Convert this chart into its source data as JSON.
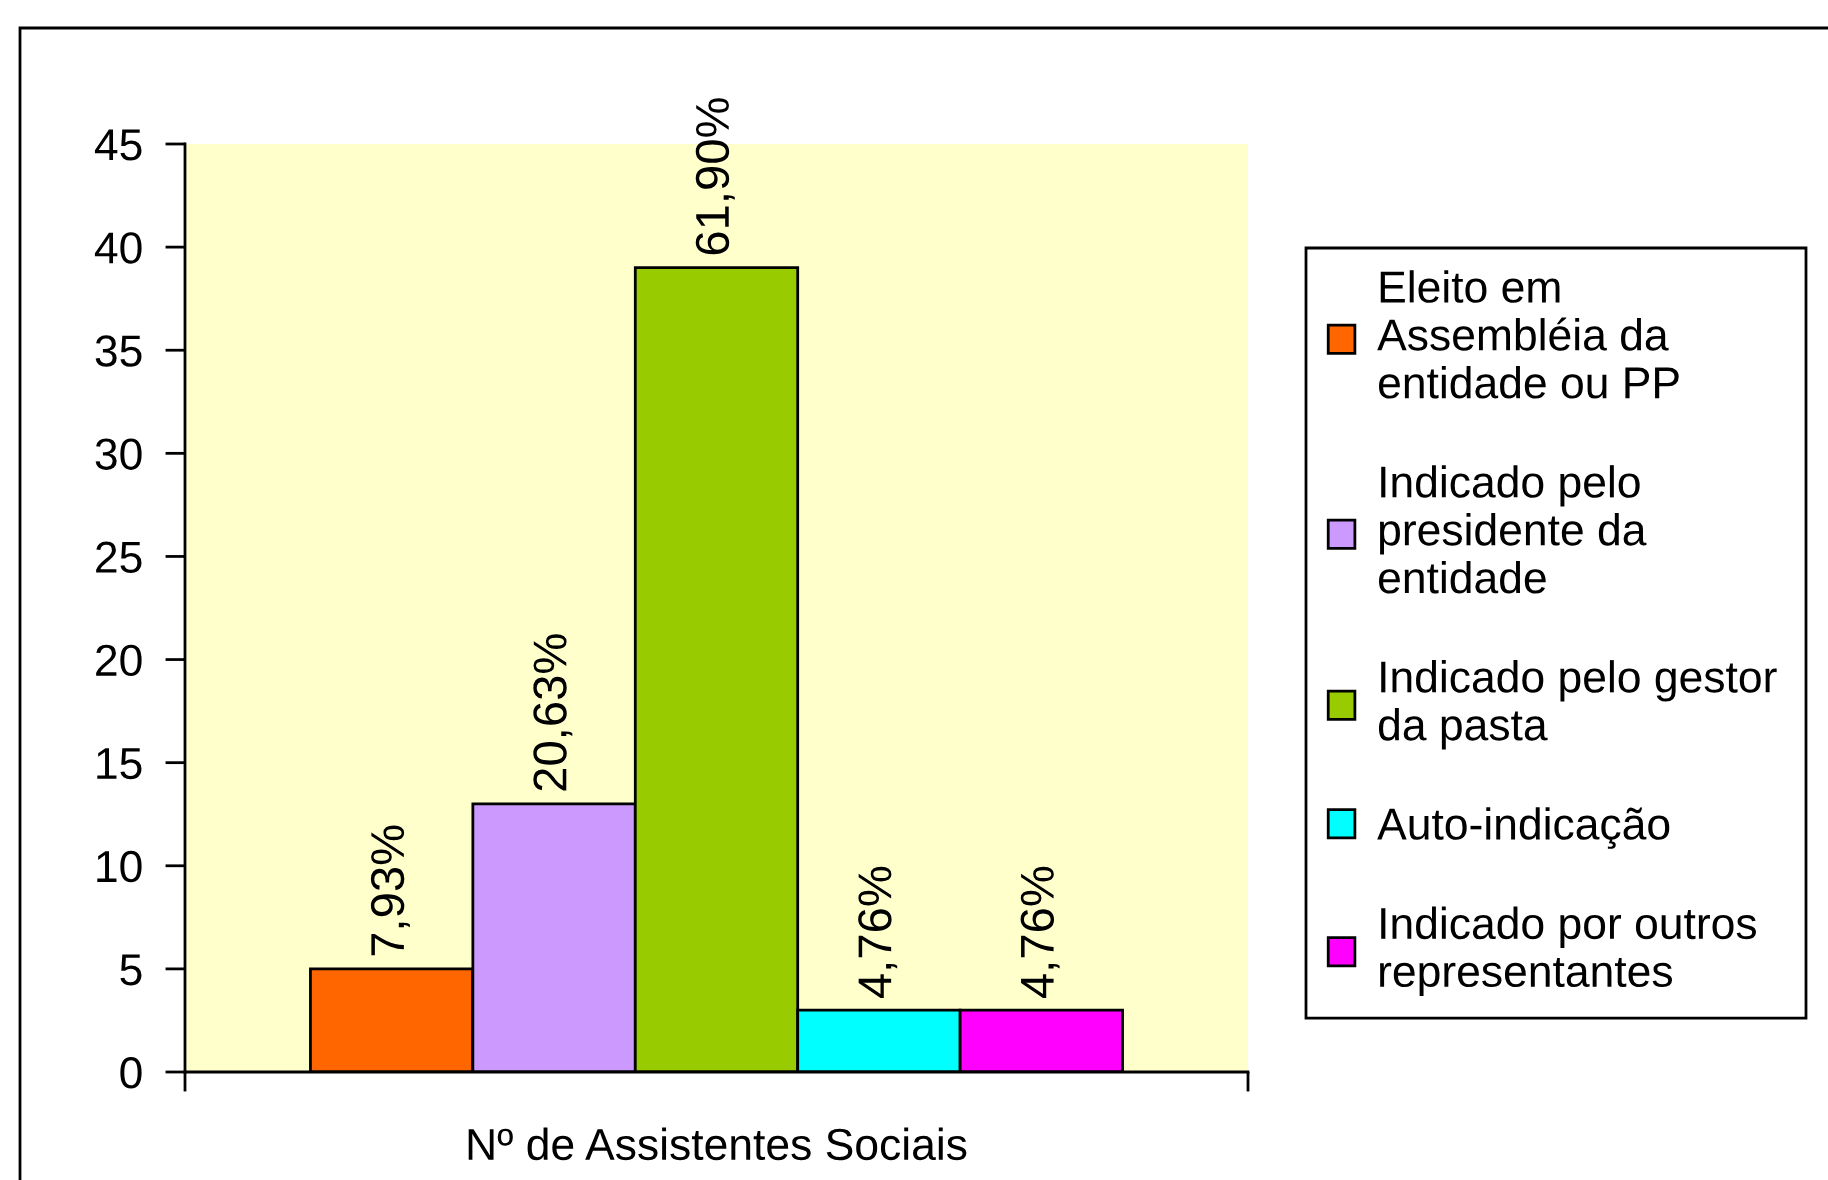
{
  "chart_data": {
    "type": "bar",
    "categories": [
      "Nº de Assistentes Sociais"
    ],
    "series": [
      {
        "name": "Eleito em Assembléia da entidade ou PP",
        "color": "#ff6600",
        "values": [
          5
        ]
      },
      {
        "name": "Indicado pelo presidente da entidade",
        "color": "#cc99ff",
        "values": [
          13
        ]
      },
      {
        "name": "Indicado pelo gestor da pasta",
        "color": "#99cc00",
        "values": [
          39
        ]
      },
      {
        "name": "Auto-indicação",
        "color": "#00ffff",
        "values": [
          3
        ]
      },
      {
        "name": "Indicado por outros representantes",
        "color": "#ff00ff",
        "values": [
          3
        ]
      }
    ],
    "annotations": [
      "7,93%",
      "20,63%",
      "61,90%",
      "4,76%",
      "4,76%"
    ],
    "ylim": [
      0,
      45
    ],
    "yticks": [
      0,
      5,
      10,
      15,
      20,
      25,
      30,
      35,
      40,
      45
    ],
    "grid": false,
    "legend": "right"
  }
}
